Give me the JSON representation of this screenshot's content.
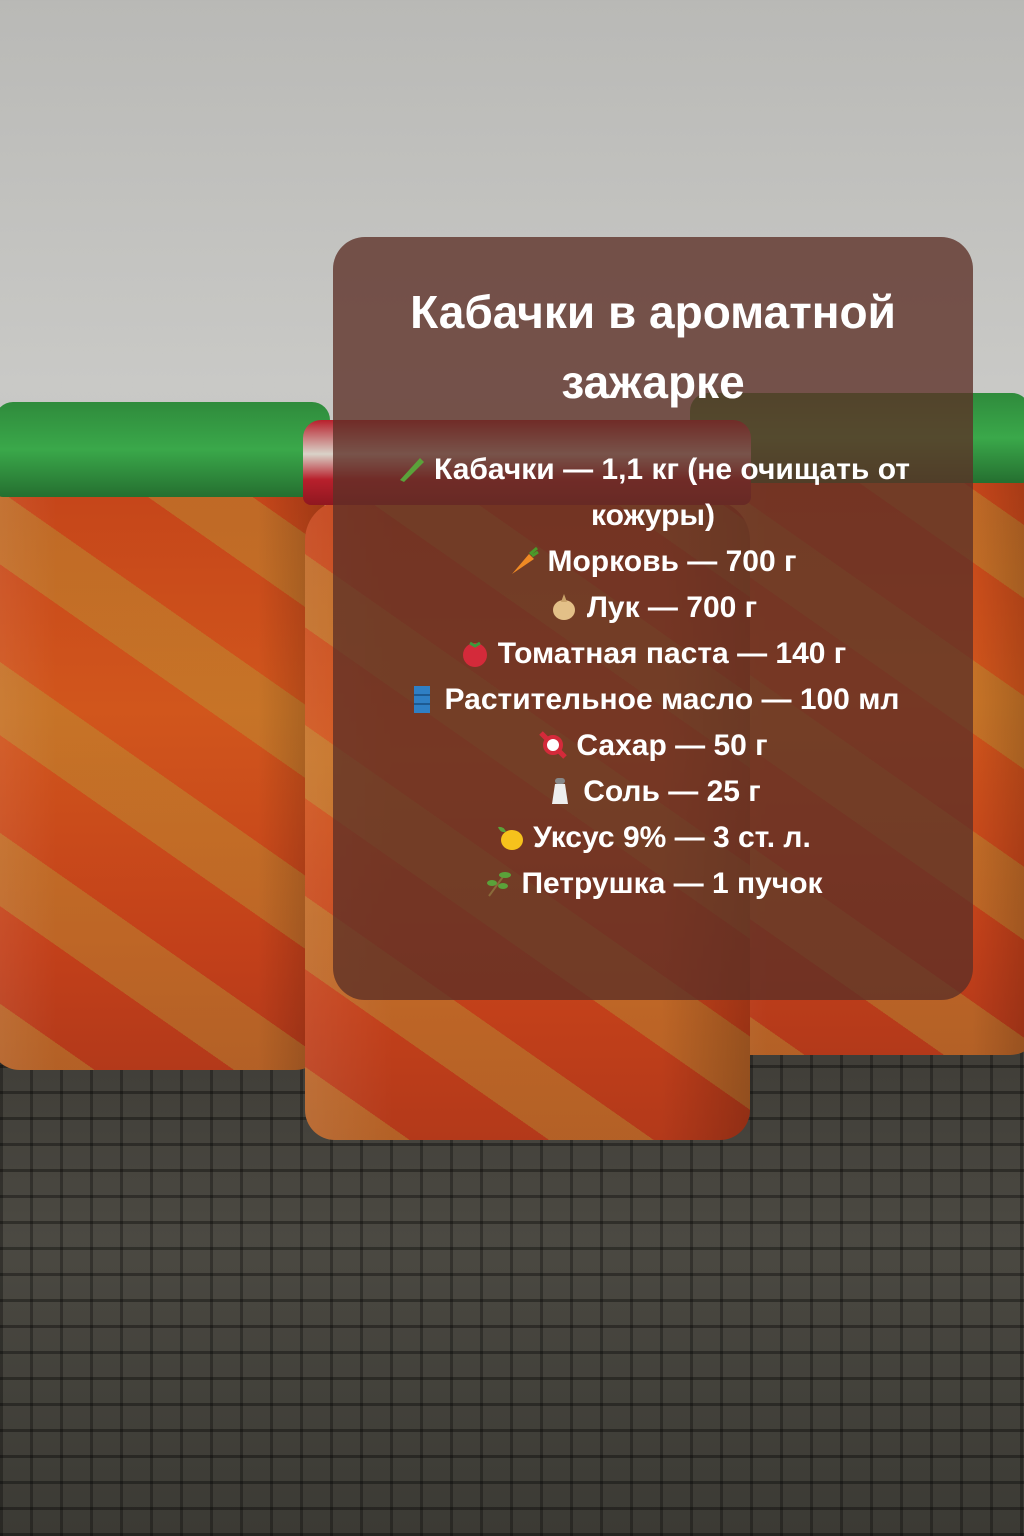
{
  "recipe": {
    "title": "Кабачки в ароматной зажарке",
    "ingredients": [
      {
        "icon": "cucumber-icon",
        "text": "Кабачки — 1,1 кг (не очищать от кожуры)"
      },
      {
        "icon": "carrot-icon",
        "text": "Морковь — 700 г"
      },
      {
        "icon": "onion-icon",
        "text": "Лук — 700 г"
      },
      {
        "icon": "tomato-icon",
        "text": "Томатная паста — 140 г"
      },
      {
        "icon": "oil-barrel-icon",
        "text": "Растительное масло — 100 мл"
      },
      {
        "icon": "candy-icon",
        "text": "Сахар — 50 г"
      },
      {
        "icon": "salt-shaker-icon",
        "text": "Соль — 25 г"
      },
      {
        "icon": "lemon-icon",
        "text": "Уксус 9% — 3 ст. л."
      },
      {
        "icon": "herb-icon",
        "text": "Петрушка — 1 пучок"
      }
    ]
  },
  "colors": {
    "card": "#5c3026",
    "text": "#ffffff"
  }
}
